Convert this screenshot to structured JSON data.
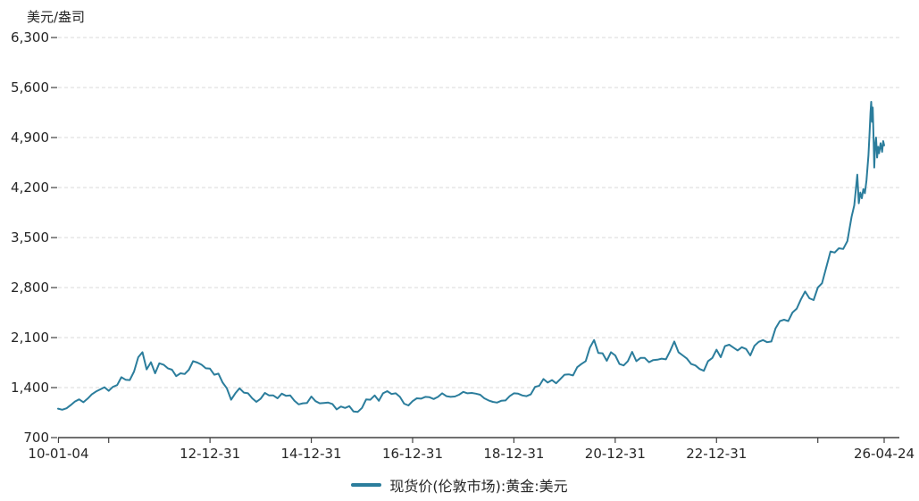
{
  "page": {
    "background": "#ffffff"
  },
  "chart_data": {
    "type": "line",
    "title": "",
    "unit_label": "美元/盎司",
    "ylim": [
      700,
      6300
    ],
    "yticks": [
      700,
      1400,
      2100,
      2800,
      3500,
      4200,
      4900,
      5600,
      6300
    ],
    "xlim": [
      2010.0,
      2026.31
    ],
    "xticks": [
      {
        "t": 2010.008,
        "label": "10-01-04"
      },
      {
        "t": 2011.0,
        "label": ""
      },
      {
        "t": 2013.0,
        "label": "12-12-31"
      },
      {
        "t": 2015.0,
        "label": "14-12-31"
      },
      {
        "t": 2017.0,
        "label": "16-12-31"
      },
      {
        "t": 2019.0,
        "label": "18-12-31"
      },
      {
        "t": 2021.0,
        "label": "20-12-31"
      },
      {
        "t": 2023.0,
        "label": "22-12-31"
      },
      {
        "t": 2025.0,
        "label": ""
      },
      {
        "t": 2026.31,
        "label": "26-04-24"
      }
    ],
    "grid": "horizontal-dashed",
    "legend_position": "bottom-center",
    "colors": {
      "grid": "#d9d9d9",
      "axis": "#404040",
      "text": "#262626"
    },
    "series": [
      {
        "name": "现货价(伦敦市场):黄金:美元",
        "color": "#2b7d9c",
        "start_year": 2010.0,
        "step_months": 1,
        "monthly_values": [
          1105,
          1090,
          1110,
          1155,
          1205,
          1235,
          1195,
          1245,
          1305,
          1345,
          1375,
          1405,
          1355,
          1410,
          1435,
          1545,
          1510,
          1505,
          1625,
          1825,
          1895,
          1655,
          1755,
          1600,
          1740,
          1720,
          1670,
          1650,
          1560,
          1600,
          1590,
          1650,
          1770,
          1750,
          1720,
          1670,
          1665,
          1580,
          1595,
          1470,
          1390,
          1230,
          1320,
          1390,
          1330,
          1320,
          1250,
          1200,
          1245,
          1325,
          1290,
          1290,
          1250,
          1315,
          1285,
          1290,
          1215,
          1165,
          1180,
          1185,
          1275,
          1210,
          1180,
          1185,
          1190,
          1170,
          1095,
          1135,
          1115,
          1140,
          1065,
          1060,
          1115,
          1235,
          1230,
          1290,
          1215,
          1320,
          1350,
          1310,
          1320,
          1270,
          1175,
          1150,
          1210,
          1250,
          1245,
          1270,
          1265,
          1240,
          1270,
          1320,
          1280,
          1270,
          1275,
          1300,
          1340,
          1320,
          1325,
          1315,
          1300,
          1250,
          1220,
          1200,
          1190,
          1215,
          1220,
          1280,
          1320,
          1315,
          1290,
          1280,
          1305,
          1410,
          1425,
          1520,
          1470,
          1505,
          1460,
          1520,
          1580,
          1585,
          1570,
          1685,
          1730,
          1770,
          1960,
          2065,
          1885,
          1880,
          1775,
          1895,
          1850,
          1730,
          1710,
          1770,
          1900,
          1770,
          1815,
          1815,
          1755,
          1785,
          1790,
          1805,
          1795,
          1910,
          2045,
          1895,
          1850,
          1805,
          1730,
          1710,
          1660,
          1635,
          1770,
          1815,
          1930,
          1825,
          1980,
          2000,
          1960,
          1920,
          1965,
          1940,
          1850,
          1985,
          2040,
          2065,
          2035,
          2045,
          2230,
          2330,
          2350,
          2330,
          2450,
          2505,
          2635,
          2745,
          2650,
          2625,
          2800,
          2860,
          3085,
          3305,
          3290,
          3350,
          3340,
          3450,
          3790
        ],
        "tail_points": [
          [
            2025.72,
            3950
          ],
          [
            2025.75,
            4160
          ],
          [
            2025.78,
            4380
          ],
          [
            2025.81,
            3980
          ],
          [
            2025.84,
            4130
          ],
          [
            2025.87,
            4050
          ],
          [
            2025.9,
            4180
          ],
          [
            2025.93,
            4120
          ],
          [
            2025.96,
            4300
          ],
          [
            2026.0,
            4650
          ],
          [
            2026.02,
            4950
          ],
          [
            2026.04,
            5250
          ],
          [
            2026.055,
            5400
          ],
          [
            2026.07,
            5120
          ],
          [
            2026.085,
            5320
          ],
          [
            2026.1,
            4900
          ],
          [
            2026.115,
            4480
          ],
          [
            2026.13,
            4780
          ],
          [
            2026.15,
            4900
          ],
          [
            2026.17,
            4620
          ],
          [
            2026.19,
            4770
          ],
          [
            2026.21,
            4680
          ],
          [
            2026.24,
            4820
          ],
          [
            2026.27,
            4700
          ],
          [
            2026.29,
            4850
          ],
          [
            2026.31,
            4790
          ]
        ]
      }
    ]
  }
}
